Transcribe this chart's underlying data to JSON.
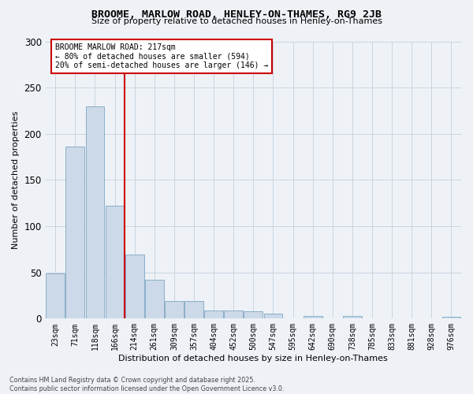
{
  "title": "BROOME, MARLOW ROAD, HENLEY-ON-THAMES, RG9 2JB",
  "subtitle": "Size of property relative to detached houses in Henley-on-Thames",
  "xlabel": "Distribution of detached houses by size in Henley-on-Thames",
  "ylabel": "Number of detached properties",
  "categories": [
    "23sqm",
    "71sqm",
    "118sqm",
    "166sqm",
    "214sqm",
    "261sqm",
    "309sqm",
    "357sqm",
    "404sqm",
    "452sqm",
    "500sqm",
    "547sqm",
    "595sqm",
    "642sqm",
    "690sqm",
    "738sqm",
    "785sqm",
    "833sqm",
    "881sqm",
    "928sqm",
    "976sqm"
  ],
  "values": [
    49,
    186,
    230,
    122,
    69,
    42,
    19,
    19,
    9,
    9,
    8,
    5,
    0,
    3,
    0,
    3,
    0,
    0,
    0,
    0,
    2
  ],
  "bar_color": "#ccd9e8",
  "bar_edge_color": "#8aafc8",
  "vline_color": "#cc0000",
  "annotation_text": "BROOME MARLOW ROAD: 217sqm\n← 80% of detached houses are smaller (594)\n20% of semi-detached houses are larger (146) →",
  "annotation_box_color": "#ffffff",
  "annotation_box_edge": "#cc0000",
  "grid_color": "#c8d4e0",
  "background_color": "#eef2f7",
  "ylim": [
    0,
    300
  ],
  "footer": "Contains HM Land Registry data © Crown copyright and database right 2025.\nContains public sector information licensed under the Open Government Licence v3.0."
}
